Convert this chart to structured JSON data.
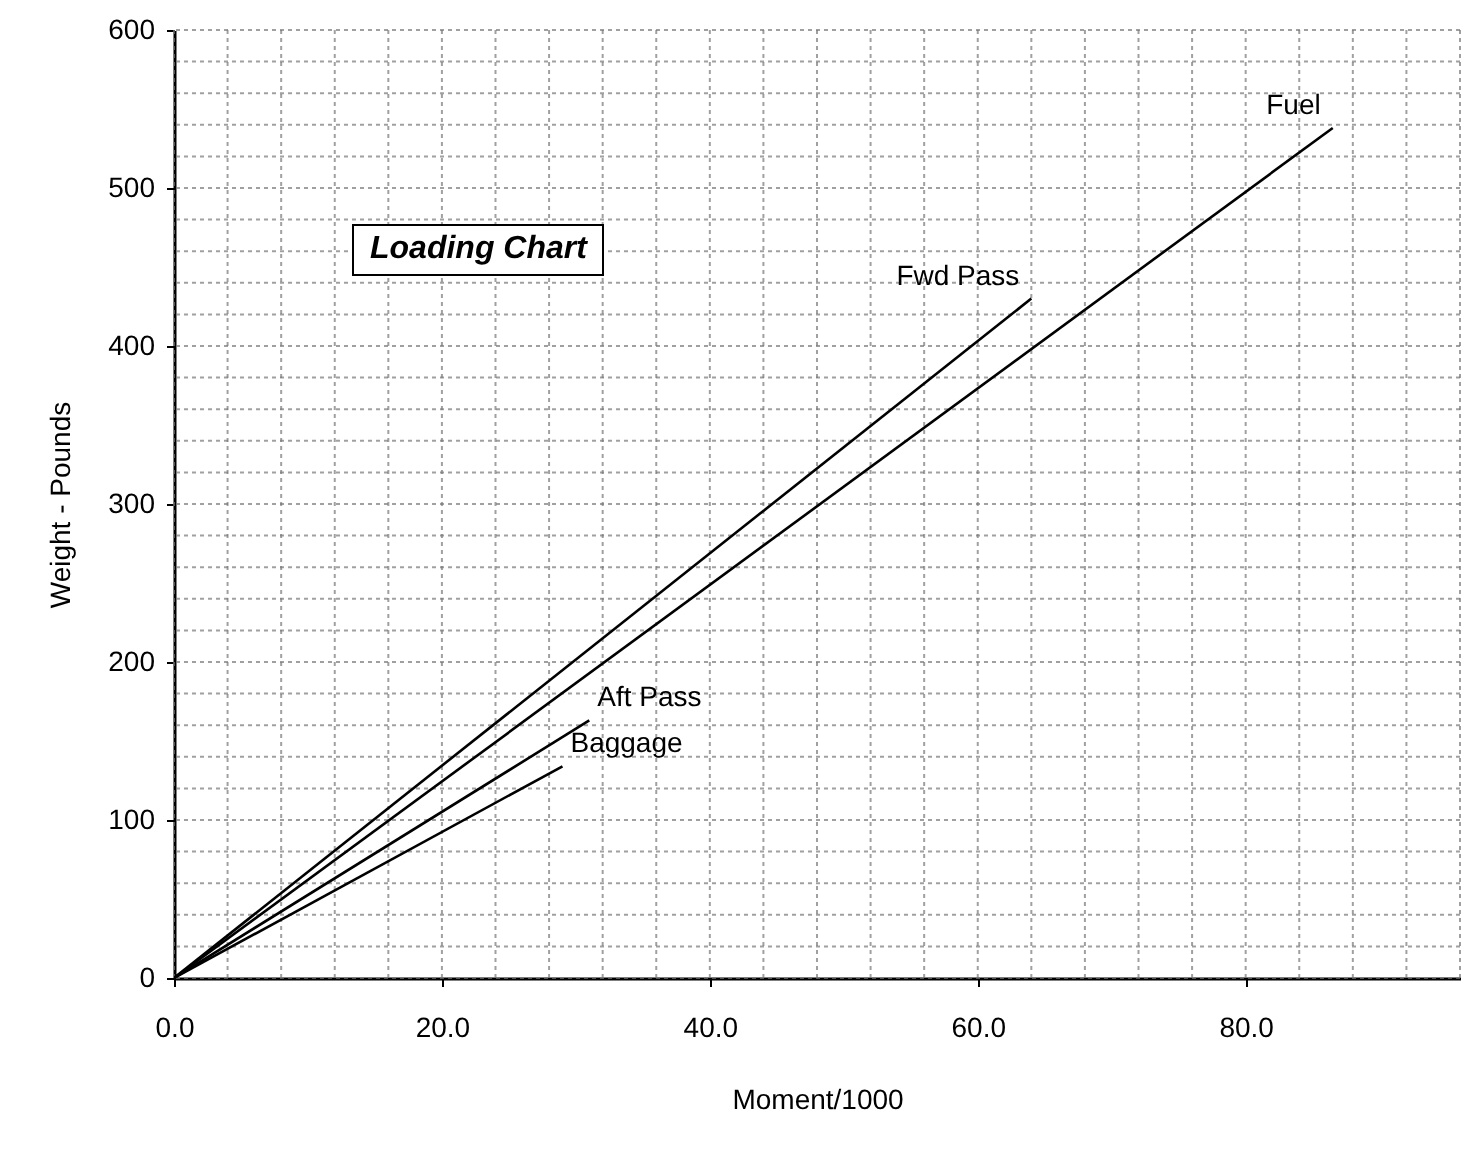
{
  "chart_data": {
    "type": "line",
    "title": "Loading Chart",
    "xlabel": "Moment/1000",
    "ylabel": "Weight - Pounds",
    "series": [
      {
        "name": "Fuel",
        "color": "#000000",
        "x": [
          0,
          86.5
        ],
        "values": [
          0,
          538
        ]
      },
      {
        "name": "Fwd Pass",
        "color": "#000000",
        "x": [
          0,
          64
        ],
        "values": [
          0,
          430
        ]
      },
      {
        "name": "Aft Pass",
        "color": "#000000",
        "x": [
          0,
          31
        ],
        "values": [
          0,
          163
        ]
      },
      {
        "name": "Baggage",
        "color": "#000000",
        "x": [
          0,
          29
        ],
        "values": [
          0,
          134
        ]
      }
    ],
    "xlim": [
      0,
      96
    ],
    "xticks": [
      {
        "value": 0,
        "label": "0.0"
      },
      {
        "value": 4,
        "label": null
      },
      {
        "value": 8,
        "label": null
      },
      {
        "value": 12,
        "label": null
      },
      {
        "value": 16,
        "label": null
      },
      {
        "value": 20,
        "label": "20.0"
      },
      {
        "value": 24,
        "label": null
      },
      {
        "value": 28,
        "label": null
      },
      {
        "value": 32,
        "label": null
      },
      {
        "value": 36,
        "label": null
      },
      {
        "value": 40,
        "label": "40.0"
      },
      {
        "value": 44,
        "label": null
      },
      {
        "value": 48,
        "label": null
      },
      {
        "value": 52,
        "label": null
      },
      {
        "value": 56,
        "label": null
      },
      {
        "value": 60,
        "label": "60.0"
      },
      {
        "value": 64,
        "label": null
      },
      {
        "value": 68,
        "label": null
      },
      {
        "value": 72,
        "label": null
      },
      {
        "value": 76,
        "label": null
      },
      {
        "value": 80,
        "label": "80.0"
      },
      {
        "value": 84,
        "label": null
      },
      {
        "value": 88,
        "label": null
      },
      {
        "value": 92,
        "label": null
      },
      {
        "value": 96,
        "label": null
      }
    ],
    "ylim": [
      0,
      600
    ],
    "yticks": [
      0,
      {
        "value": 20,
        "label": null
      },
      {
        "value": 40,
        "label": null
      },
      {
        "value": 60,
        "label": null
      },
      {
        "value": 80,
        "label": null
      },
      100,
      {
        "value": 120,
        "label": null
      },
      {
        "value": 140,
        "label": null
      },
      {
        "value": 160,
        "label": null
      },
      {
        "value": 180,
        "label": null
      },
      200,
      {
        "value": 220,
        "label": null
      },
      {
        "value": 240,
        "label": null
      },
      {
        "value": 260,
        "label": null
      },
      {
        "value": 280,
        "label": null
      },
      300,
      {
        "value": 320,
        "label": null
      },
      {
        "value": 340,
        "label": null
      },
      {
        "value": 360,
        "label": null
      },
      {
        "value": 380,
        "label": null
      },
      400,
      {
        "value": 420,
        "label": null
      },
      {
        "value": 440,
        "label": null
      },
      {
        "value": 460,
        "label": null
      },
      {
        "value": 480,
        "label": null
      },
      500,
      {
        "value": 520,
        "label": null
      },
      {
        "value": 540,
        "label": null
      },
      {
        "value": 560,
        "label": null
      },
      {
        "value": 580,
        "label": null
      },
      600
    ],
    "grid": true,
    "line_style": "solid"
  }
}
